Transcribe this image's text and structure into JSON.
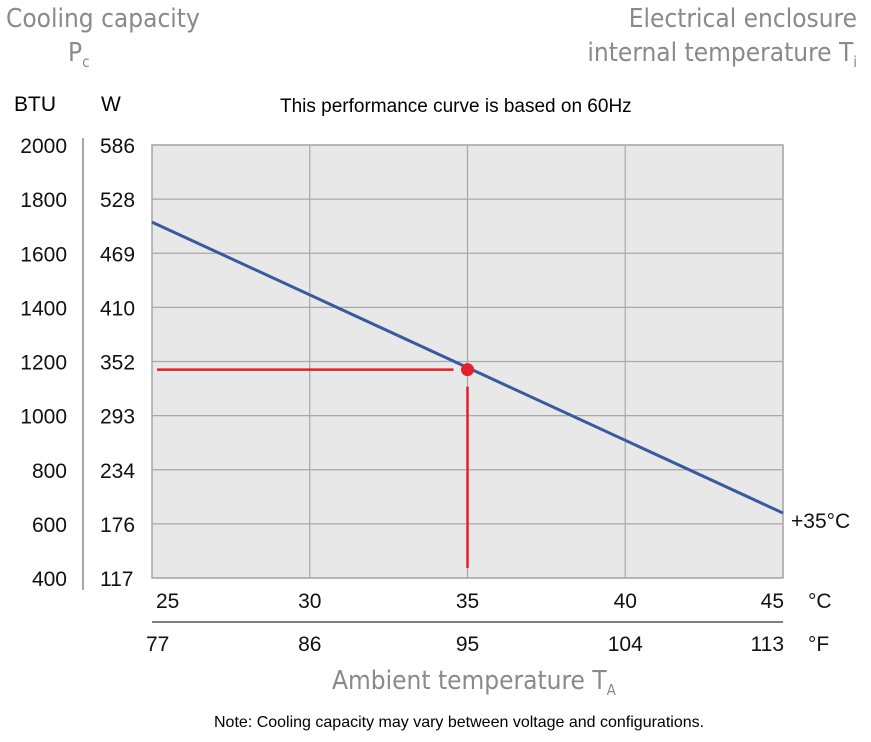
{
  "header": {
    "left_title": "Cooling capacity",
    "left_symbol": "P",
    "left_sub": "c",
    "right_title": "Electrical enclosure",
    "right_title2": "internal temperature T",
    "right_sub": "i",
    "note_top": "This performance curve is based on 60Hz",
    "note_bottom": "Note: Cooling capacity may vary between voltage and configurations."
  },
  "chart_data": {
    "type": "line",
    "title": "This performance curve is based on 60Hz",
    "xlabel": "Ambient temperature T",
    "xlabel_sub": "A",
    "ylabel": "Cooling capacity Pc",
    "y_unit_primary": "BTU",
    "y_unit_secondary": "W",
    "x_unit_primary": "°C",
    "x_unit_secondary": "°F",
    "xlim": [
      25,
      45
    ],
    "ylim": [
      400,
      2000
    ],
    "grid": true,
    "x_ticks_c": [
      "25",
      "30",
      "35",
      "40",
      "45"
    ],
    "x_ticks_f": [
      "77",
      "86",
      "95",
      "104",
      "113"
    ],
    "y_ticks_btu": [
      "2000",
      "1800",
      "1600",
      "1400",
      "1200",
      "1000",
      "800",
      "600",
      "400"
    ],
    "y_ticks_w": [
      "586",
      "528",
      "469",
      "410",
      "352",
      "293",
      "234",
      "176",
      "117"
    ],
    "series": [
      {
        "name": "+35°C",
        "color": "#3a5aa0",
        "x": [
          25,
          45
        ],
        "y": [
          1715,
          640
        ]
      }
    ],
    "marker": {
      "x": 35,
      "y": 1170,
      "color": "#e3202a"
    },
    "colors": {
      "plot_bg": "#e8e8e9",
      "grid": "#a8a8a8",
      "curve": "#3a5aa0",
      "marker": "#e3202a"
    }
  }
}
